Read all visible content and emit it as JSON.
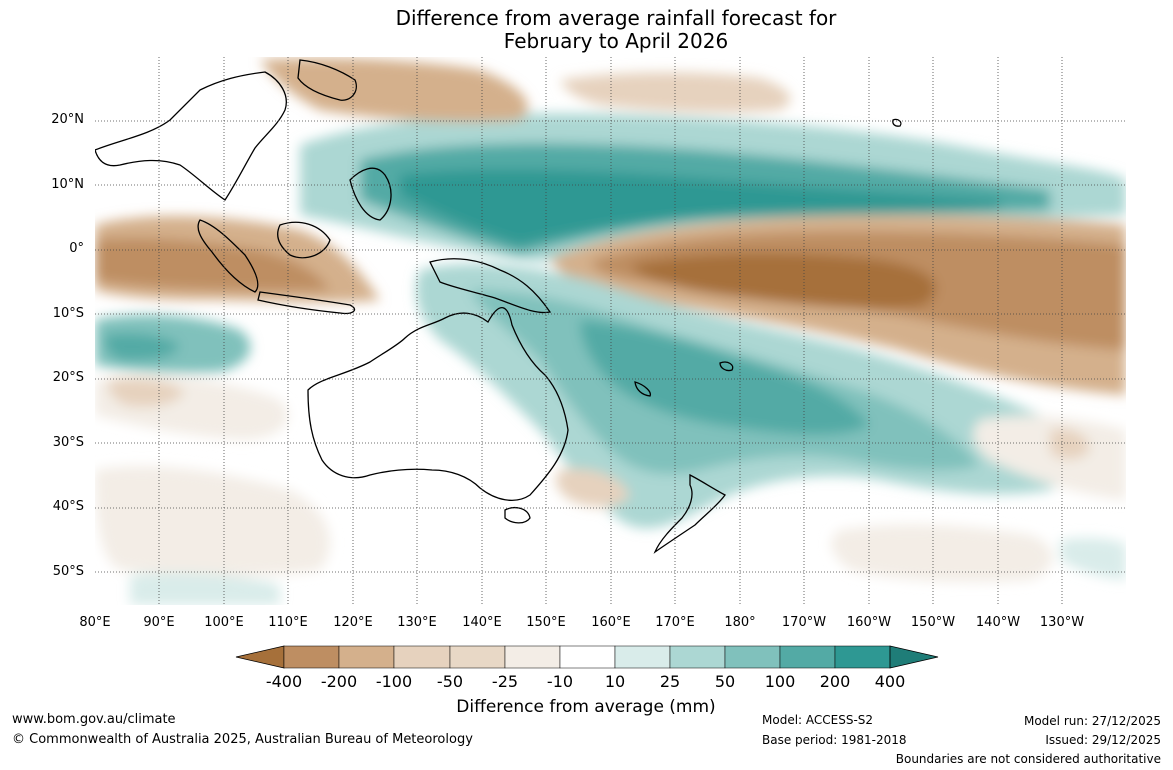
{
  "title": {
    "line1": "Difference from average rainfall forecast for",
    "line2": "February to April 2026"
  },
  "map": {
    "lat_labels": [
      "20°N",
      "10°N",
      "0°",
      "10°S",
      "20°S",
      "30°S",
      "40°S",
      "50°S"
    ],
    "lon_labels": [
      "80°E",
      "90°E",
      "100°E",
      "110°E",
      "120°E",
      "130°E",
      "140°E",
      "150°E",
      "160°E",
      "170°E",
      "180°",
      "170°W",
      "160°W",
      "150°W",
      "140°W",
      "130°W"
    ]
  },
  "colorbar": {
    "labels": [
      "-400",
      "-200",
      "-100",
      "-50",
      "-25",
      "-10",
      "10",
      "25",
      "50",
      "100",
      "200",
      "400"
    ],
    "colors": [
      "#a6703a",
      "#be8e62",
      "#d4b08c",
      "#e6d2be",
      "#f3ede6",
      "#ffffff",
      "#d9ecea",
      "#acd7d3",
      "#80c1bc",
      "#53aaa5",
      "#2e9893",
      "#1f7d78"
    ],
    "title": "Difference from average (mm)"
  },
  "footer": {
    "website": "www.bom.gov.au/climate",
    "copyright": "© Commonwealth of Australia 2025, Australian Bureau of Meteorology",
    "model": "Model: ACCESS-S2",
    "base_period": "Base period: 1981-2018",
    "model_run": "Model run: 27/12/2025",
    "issued": "Issued: 29/12/2025",
    "disclaimer": "Boundaries are not considered authoritative"
  }
}
